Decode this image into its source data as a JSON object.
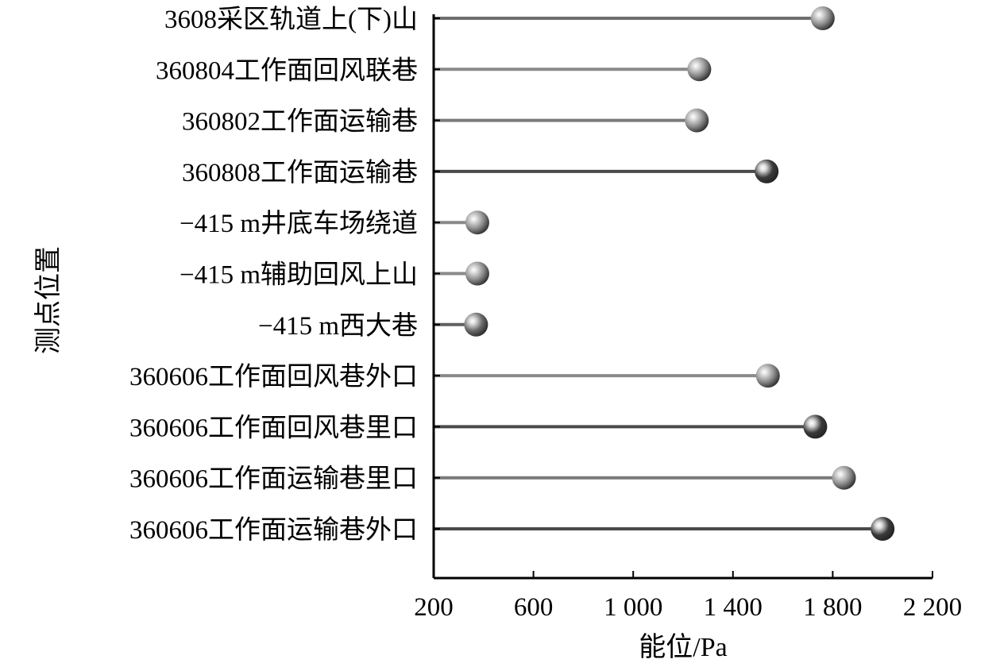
{
  "chart_data": {
    "type": "lollipop",
    "orientation": "horizontal",
    "xlabel": "能位/Pa",
    "ylabel": "测点位置",
    "xlim": [
      200,
      2200
    ],
    "xticks": [
      200,
      600,
      1000,
      1400,
      1800,
      2200
    ],
    "xtick_labels": [
      "200",
      "600",
      "1 000",
      "1 400",
      "1 800",
      "2 200"
    ],
    "categories": [
      "3608采区轨道上(下)山",
      "360804工作面回风联巷",
      "360802工作面运输巷",
      "360808工作面运输巷",
      "−415 m井底车场绕道",
      "−415 m辅助回风上山",
      "−415 m西大巷",
      "360606工作面回风巷外口",
      "360606工作面回风巷里口",
      "360606工作面运输巷里口",
      "360606工作面运输巷外口"
    ],
    "values": [
      1760,
      1265,
      1255,
      1535,
      375,
      375,
      370,
      1540,
      1730,
      1845,
      2000
    ],
    "marker_colors": [
      "#8c8c8c",
      "#8c8c8c",
      "#8c8c8c",
      "#3a3a3a",
      "#8c8c8c",
      "#8c8c8c",
      "#6a6a6a",
      "#8c8c8c",
      "#3a3a3a",
      "#8c8c8c",
      "#3a3a3a"
    ],
    "stem_colors": [
      "#6e6e6e",
      "#8a8a8a",
      "#7a7a7a",
      "#4a4a4a",
      "#8a8a8a",
      "#8a8a8a",
      "#606060",
      "#8a8a8a",
      "#4a4a4a",
      "#7a7a7a",
      "#4a4a4a"
    ],
    "grid": false,
    "legend": "none"
  }
}
